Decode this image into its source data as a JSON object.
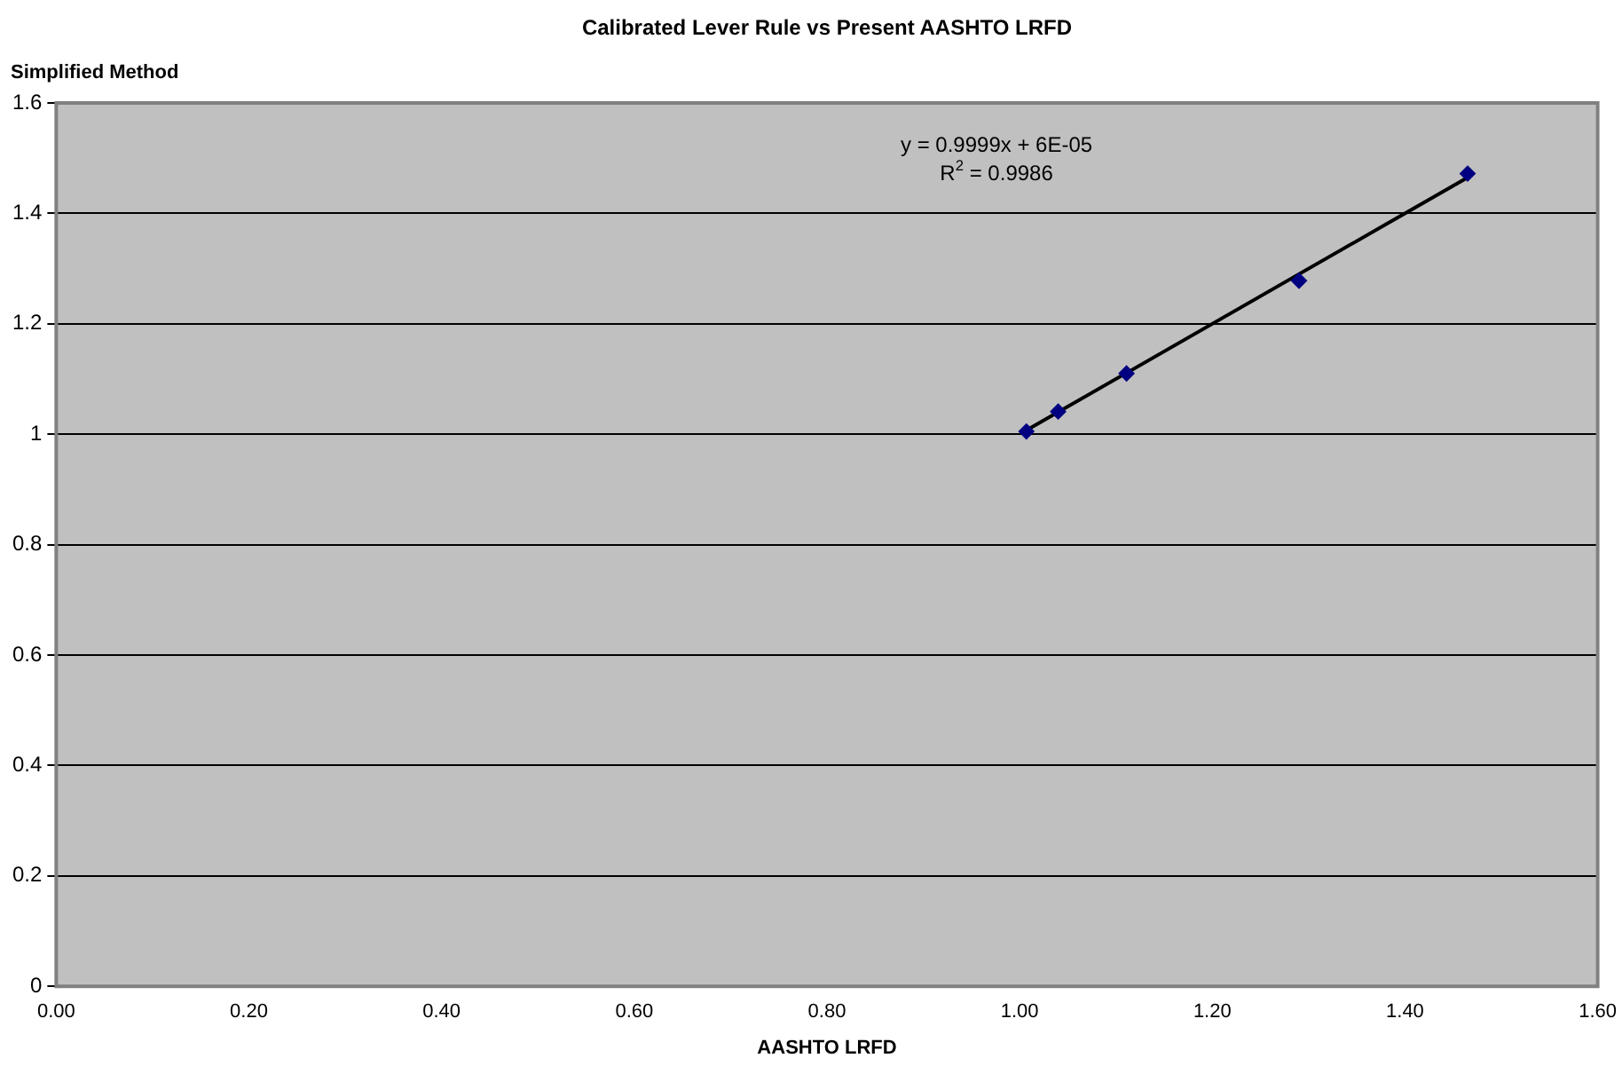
{
  "chart_data": {
    "type": "scatter",
    "title": "Calibrated Lever Rule vs Present AASHTO LRFD",
    "xlabel": "AASHTO LRFD",
    "ylabel": "Simplified Method",
    "series": [
      {
        "color": "#000080",
        "marker": "diamond",
        "x": [
          1.007,
          1.04,
          1.111,
          1.29,
          1.465
        ],
        "values": [
          1.005,
          1.041,
          1.11,
          1.278,
          1.472
        ]
      },
      {
        "type": "line",
        "marker": "none",
        "color": "#000000",
        "x": [
          1.007,
          1.465
        ],
        "values": [
          1.007,
          1.465
        ]
      }
    ],
    "xlim": [
      0,
      1.6
    ],
    "xticks": [
      {
        "value": 0,
        "label": "0.00"
      },
      {
        "value": 0.2,
        "label": "0.20"
      },
      {
        "value": 0.4,
        "label": "0.40"
      },
      {
        "value": 0.6,
        "label": "0.60"
      },
      {
        "value": 0.8,
        "label": "0.80"
      },
      {
        "value": 1,
        "label": "1.00"
      },
      {
        "value": 1.2,
        "label": "1.20"
      },
      {
        "value": 1.4,
        "label": "1.40"
      },
      {
        "value": 1.6,
        "label": "1.60"
      }
    ],
    "ylim": [
      0,
      1.6
    ],
    "yticks": [
      0,
      0.2,
      0.4,
      0.6,
      0.8,
      1,
      1.2,
      1.4,
      1.6
    ],
    "annotations": [
      "y = 0.9999x + 6E-05",
      "R$^{2}$ = 0.9986"
    ],
    "grid": "y",
    "legend": false
  }
}
